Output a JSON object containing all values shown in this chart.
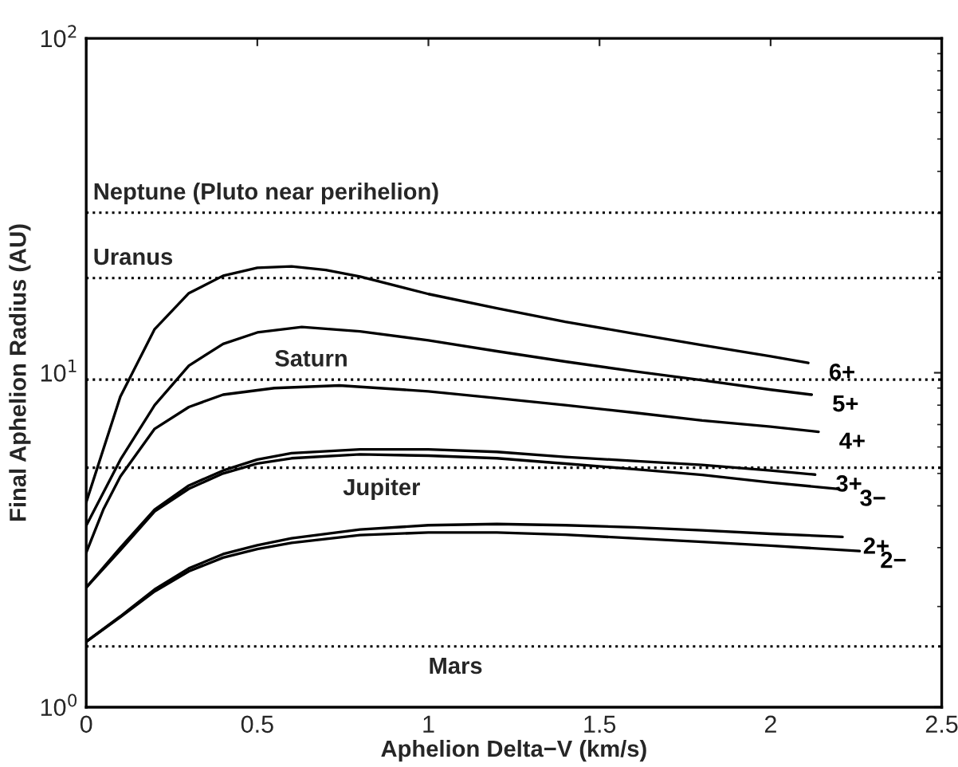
{
  "chart_data": {
    "type": "line",
    "xlabel": "Aphelion Delta−V (km/s)",
    "ylabel": "Final Aphelion Radius (AU)",
    "log": "y",
    "xlim": [
      0,
      2.5
    ],
    "ylim": [
      1,
      100
    ],
    "xticks": [
      0,
      0.5,
      1,
      1.5,
      2,
      2.5
    ],
    "yticks": [
      {
        "value": 1,
        "label": "10$^{0}$"
      },
      {
        "value": 10,
        "label": "10$^{1}$"
      },
      {
        "value": 100,
        "label": "10$^{2}$"
      }
    ],
    "grid": false,
    "legend": false,
    "marker": "none",
    "line_style": "solid",
    "series": [
      {
        "name": "6+",
        "color": "#000000",
        "x": [
          0,
          0.1,
          0.2,
          0.3,
          0.4,
          0.5,
          0.6,
          0.7,
          0.8,
          1.0,
          1.2,
          1.4,
          1.6,
          1.8,
          2.0,
          2.11
        ],
        "values": [
          4.1,
          8.5,
          13.5,
          17.3,
          19.5,
          20.6,
          20.8,
          20.3,
          19.4,
          17.2,
          15.6,
          14.2,
          13.1,
          12.1,
          11.2,
          10.7
        ]
      },
      {
        "name": "5+",
        "color": "#000000",
        "x": [
          0,
          0.1,
          0.2,
          0.3,
          0.4,
          0.5,
          0.63,
          0.8,
          1.0,
          1.2,
          1.4,
          1.6,
          1.8,
          2.0,
          2.12
        ],
        "values": [
          3.49,
          5.5,
          8.0,
          10.5,
          12.2,
          13.2,
          13.7,
          13.3,
          12.5,
          11.6,
          10.8,
          10.1,
          9.5,
          8.9,
          8.6
        ]
      },
      {
        "name": "4+",
        "color": "#000000",
        "x": [
          0,
          0.05,
          0.1,
          0.2,
          0.3,
          0.4,
          0.55,
          0.74,
          1.0,
          1.2,
          1.4,
          1.6,
          1.8,
          2.0,
          2.14
        ],
        "values": [
          2.9,
          3.9,
          4.9,
          6.8,
          7.9,
          8.6,
          9.0,
          9.16,
          8.8,
          8.4,
          8.0,
          7.6,
          7.2,
          6.9,
          6.66
        ]
      },
      {
        "name": "3+",
        "color": "#000000",
        "x": [
          0,
          0.1,
          0.2,
          0.3,
          0.4,
          0.5,
          0.6,
          0.8,
          1.0,
          1.2,
          1.4,
          1.6,
          1.8,
          2.0,
          2.13
        ],
        "values": [
          2.28,
          3.0,
          3.9,
          4.6,
          5.1,
          5.5,
          5.75,
          5.9,
          5.9,
          5.8,
          5.6,
          5.45,
          5.3,
          5.1,
          4.96
        ]
      },
      {
        "name": "3−",
        "color": "#000000",
        "x": [
          0,
          0.1,
          0.2,
          0.3,
          0.4,
          0.5,
          0.6,
          0.8,
          1.0,
          1.2,
          1.4,
          1.6,
          1.8,
          2.0,
          2.2
        ],
        "values": [
          2.28,
          2.95,
          3.85,
          4.5,
          5.0,
          5.35,
          5.55,
          5.7,
          5.65,
          5.55,
          5.35,
          5.15,
          4.95,
          4.7,
          4.49
        ]
      },
      {
        "name": "2+",
        "color": "#000000",
        "x": [
          0,
          0.1,
          0.2,
          0.3,
          0.4,
          0.5,
          0.6,
          0.8,
          1.0,
          1.2,
          1.4,
          1.6,
          1.8,
          2.0,
          2.21
        ],
        "values": [
          1.57,
          1.87,
          2.25,
          2.6,
          2.87,
          3.05,
          3.2,
          3.4,
          3.5,
          3.53,
          3.5,
          3.45,
          3.38,
          3.3,
          3.23
        ]
      },
      {
        "name": "2−",
        "color": "#000000",
        "x": [
          0,
          0.1,
          0.2,
          0.3,
          0.4,
          0.5,
          0.6,
          0.8,
          1.0,
          1.2,
          1.4,
          1.6,
          1.8,
          2.0,
          2.26
        ],
        "values": [
          1.57,
          1.86,
          2.22,
          2.55,
          2.8,
          2.97,
          3.1,
          3.27,
          3.33,
          3.33,
          3.28,
          3.2,
          3.12,
          3.04,
          2.93
        ]
      }
    ],
    "ref_lines": [
      {
        "axis": "y",
        "value": 30.1,
        "label": "Neptune (Pluto near perihelion)",
        "color": "#000000",
        "line_style": "dotted"
      },
      {
        "axis": "y",
        "value": 19.2,
        "label": "Uranus",
        "color": "#000000",
        "line_style": "dotted"
      },
      {
        "axis": "y",
        "value": 9.54,
        "label": "Saturn",
        "color": "#000000",
        "line_style": "dotted"
      },
      {
        "axis": "y",
        "value": 5.2,
        "label": "Jupiter",
        "color": "#000000",
        "line_style": "dotted"
      },
      {
        "axis": "y",
        "value": 1.52,
        "label": "Mars",
        "color": "#000000",
        "line_style": "dotted"
      }
    ]
  }
}
